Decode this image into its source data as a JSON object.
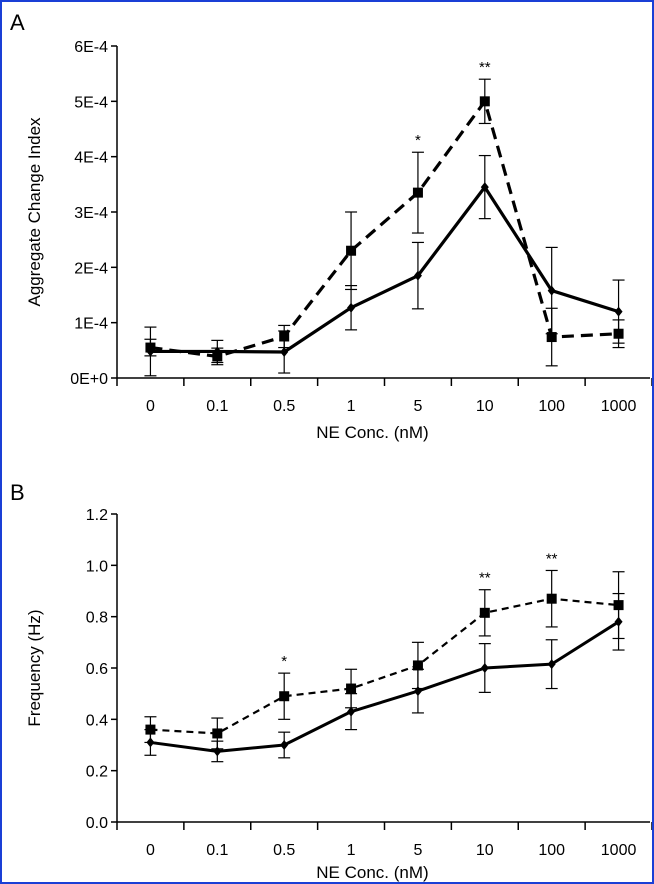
{
  "chart_data": [
    {
      "panel_label": "A",
      "type": "line",
      "categories": [
        "0",
        "0.1",
        "0.5",
        "1",
        "5",
        "10",
        "100",
        "1000"
      ],
      "xlabel": "NE Conc. (nM)",
      "ylabel": "Aggregate Change Index",
      "yticks": [
        "0E+0",
        "1E-4",
        "2E-4",
        "3E-4",
        "4E-4",
        "5E-4",
        "6E-4"
      ],
      "ylim": [
        0,
        0.0006
      ],
      "grid": false,
      "series": [
        {
          "style": "solid",
          "marker": "diamond",
          "color": "#000000",
          "values": [
            4.8e-05,
            4.8e-05,
            4.7e-05,
            0.000127,
            0.000185,
            0.000345,
            0.000158,
            0.00012
          ],
          "err": [
            4.4e-05,
            2e-05,
            3.8e-05,
            4e-05,
            6e-05,
            5.7e-05,
            7.8e-05,
            5.7e-05
          ]
        },
        {
          "style": "dashed",
          "marker": "square",
          "color": "#000000",
          "values": [
            5.5e-05,
            3.9e-05,
            7.5e-05,
            0.00023,
            0.000335,
            0.0005,
            7.4e-05,
            8e-05
          ],
          "err": [
            1.5e-05,
            1.5e-05,
            2e-05,
            7e-05,
            7.3e-05,
            4e-05,
            5.2e-05,
            2.5e-05
          ]
        }
      ],
      "annotations": [
        {
          "category": "5",
          "text": "*"
        },
        {
          "category": "10",
          "text": "**"
        }
      ]
    },
    {
      "panel_label": "B",
      "type": "line",
      "categories": [
        "0",
        "0.1",
        "0.5",
        "1",
        "5",
        "10",
        "100",
        "1000"
      ],
      "xlabel": "NE Conc. (nM)",
      "ylabel": "Frequency (Hz)",
      "yticks": [
        "0.0",
        "0.2",
        "0.4",
        "0.6",
        "0.8",
        "1.0",
        "1.2"
      ],
      "ylim": [
        0,
        1.2
      ],
      "grid": false,
      "series": [
        {
          "style": "solid",
          "marker": "diamond",
          "color": "#000000",
          "values": [
            0.31,
            0.275,
            0.3,
            0.43,
            0.51,
            0.6,
            0.615,
            0.78
          ],
          "err": [
            0.05,
            0.04,
            0.05,
            0.07,
            0.085,
            0.095,
            0.095,
            0.11
          ]
        },
        {
          "style": "dashed",
          "marker": "square",
          "color": "#000000",
          "values": [
            0.36,
            0.345,
            0.49,
            0.52,
            0.61,
            0.815,
            0.87,
            0.845
          ],
          "err": [
            0.05,
            0.06,
            0.09,
            0.075,
            0.09,
            0.09,
            0.11,
            0.13
          ]
        }
      ],
      "annotations": [
        {
          "category": "0.5",
          "text": "*"
        },
        {
          "category": "10",
          "text": "**"
        },
        {
          "category": "100",
          "text": "**"
        }
      ]
    }
  ]
}
